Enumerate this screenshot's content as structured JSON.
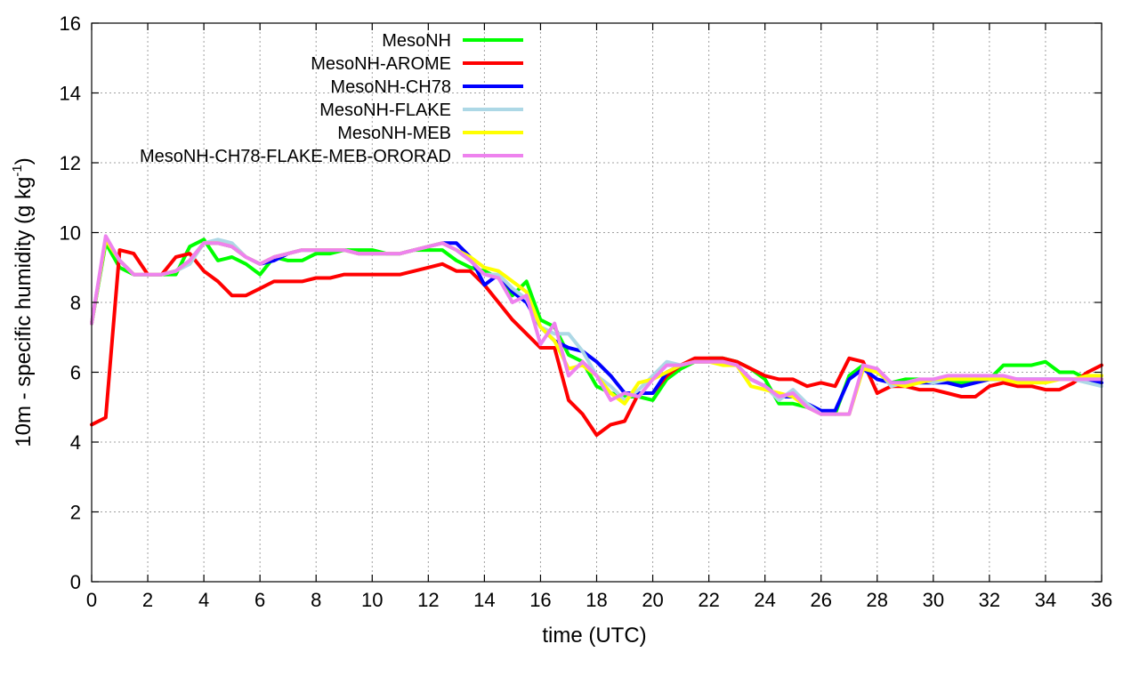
{
  "chart_data": {
    "type": "line",
    "title": "",
    "xlabel": "time (UTC)",
    "ylabel": "10m - specific humidity (g kg",
    "ylabel_sup": "-1",
    "ylabel_suffix": ")",
    "xlim": [
      0,
      36
    ],
    "ylim": [
      0,
      16
    ],
    "xticks": [
      0,
      2,
      4,
      6,
      8,
      10,
      12,
      14,
      16,
      18,
      20,
      22,
      24,
      26,
      28,
      30,
      32,
      34,
      36
    ],
    "yticks": [
      0,
      2,
      4,
      6,
      8,
      10,
      12,
      14,
      16
    ],
    "grid": true,
    "legend_position": "top-left",
    "series": [
      {
        "name": "MesoNH",
        "color": "#00ff00",
        "x": [
          0,
          0.5,
          1,
          1.5,
          2,
          2.5,
          3,
          3.5,
          4,
          4.5,
          5,
          5.5,
          6,
          6.5,
          7,
          7.5,
          8,
          8.5,
          9,
          9.5,
          10,
          10.5,
          11,
          11.5,
          12,
          12.5,
          13,
          13.5,
          14,
          14.5,
          15,
          15.5,
          16,
          16.5,
          17,
          17.5,
          18,
          18.5,
          19,
          19.5,
          20,
          20.5,
          21,
          21.5,
          22,
          22.5,
          23,
          23.5,
          24,
          24.5,
          25,
          25.5,
          26,
          26.5,
          27,
          27.5,
          28,
          28.5,
          29,
          29.5,
          30,
          30.5,
          31,
          31.5,
          32,
          32.5,
          33,
          33.5,
          34,
          34.5,
          35,
          35.5,
          36
        ],
        "y": [
          7.4,
          9.7,
          9.0,
          8.8,
          8.8,
          8.8,
          8.8,
          9.6,
          9.8,
          9.2,
          9.3,
          9.1,
          8.8,
          9.3,
          9.2,
          9.2,
          9.4,
          9.4,
          9.5,
          9.5,
          9.5,
          9.4,
          9.4,
          9.5,
          9.5,
          9.5,
          9.2,
          9.0,
          8.9,
          8.7,
          8.2,
          8.6,
          7.5,
          7.3,
          6.5,
          6.3,
          5.6,
          5.4,
          5.3,
          5.3,
          5.2,
          5.8,
          6.1,
          6.3,
          6.4,
          6.4,
          6.3,
          6.1,
          5.8,
          5.1,
          5.1,
          5.0,
          4.9,
          4.8,
          5.9,
          6.2,
          6.0,
          5.7,
          5.8,
          5.8,
          5.7,
          5.8,
          5.7,
          5.8,
          5.8,
          6.2,
          6.2,
          6.2,
          6.3,
          6.0,
          6.0,
          5.8,
          5.8
        ]
      },
      {
        "name": "MesoNH-AROME",
        "color": "#ff0000",
        "x": [
          0,
          0.5,
          1,
          1.5,
          2,
          2.5,
          3,
          3.5,
          4,
          4.5,
          5,
          5.5,
          6,
          6.5,
          7,
          7.5,
          8,
          8.5,
          9,
          9.5,
          10,
          10.5,
          11,
          11.5,
          12,
          12.5,
          13,
          13.5,
          14,
          14.5,
          15,
          15.5,
          16,
          16.5,
          17,
          17.5,
          18,
          18.5,
          19,
          19.5,
          20,
          20.5,
          21,
          21.5,
          22,
          22.5,
          23,
          23.5,
          24,
          24.5,
          25,
          25.5,
          26,
          26.5,
          27,
          27.5,
          28,
          28.5,
          29,
          29.5,
          30,
          30.5,
          31,
          31.5,
          32,
          32.5,
          33,
          33.5,
          34,
          34.5,
          35,
          35.5,
          36
        ],
        "y": [
          4.5,
          4.7,
          9.5,
          9.4,
          8.8,
          8.8,
          9.3,
          9.4,
          8.9,
          8.6,
          8.2,
          8.2,
          8.4,
          8.6,
          8.6,
          8.6,
          8.7,
          8.7,
          8.8,
          8.8,
          8.8,
          8.8,
          8.8,
          8.9,
          9.0,
          9.1,
          8.9,
          8.9,
          8.5,
          8.0,
          7.5,
          7.1,
          6.7,
          6.7,
          5.2,
          4.8,
          4.2,
          4.5,
          4.6,
          5.4,
          5.4,
          5.9,
          6.2,
          6.4,
          6.4,
          6.4,
          6.3,
          6.1,
          5.9,
          5.8,
          5.8,
          5.6,
          5.7,
          5.6,
          6.4,
          6.3,
          5.4,
          5.6,
          5.6,
          5.5,
          5.5,
          5.4,
          5.3,
          5.3,
          5.6,
          5.7,
          5.6,
          5.6,
          5.5,
          5.5,
          5.7,
          6.0,
          6.2
        ]
      },
      {
        "name": "MesoNH-CH78",
        "color": "#0000ff",
        "x": [
          0,
          0.5,
          1,
          1.5,
          2,
          2.5,
          3,
          3.5,
          4,
          4.5,
          5,
          5.5,
          6,
          6.5,
          7,
          7.5,
          8,
          8.5,
          9,
          9.5,
          10,
          10.5,
          11,
          11.5,
          12,
          12.5,
          13,
          13.5,
          14,
          14.5,
          15,
          15.5,
          16,
          16.5,
          17,
          17.5,
          18,
          18.5,
          19,
          19.5,
          20,
          20.5,
          21,
          21.5,
          22,
          22.5,
          23,
          23.5,
          24,
          24.5,
          25,
          25.5,
          26,
          26.5,
          27,
          27.5,
          28,
          28.5,
          29,
          29.5,
          30,
          30.5,
          31,
          31.5,
          32,
          32.5,
          33,
          33.5,
          34,
          34.5,
          35,
          35.5,
          36
        ],
        "y": [
          7.4,
          9.8,
          9.2,
          8.8,
          8.8,
          8.8,
          8.9,
          9.2,
          9.7,
          9.7,
          9.6,
          9.3,
          9.1,
          9.2,
          9.4,
          9.5,
          9.5,
          9.5,
          9.5,
          9.4,
          9.4,
          9.4,
          9.4,
          9.5,
          9.6,
          9.7,
          9.7,
          9.3,
          8.5,
          8.8,
          8.3,
          8.0,
          7.3,
          6.9,
          6.7,
          6.6,
          6.3,
          5.9,
          5.4,
          5.4,
          5.4,
          6.0,
          6.2,
          6.3,
          6.3,
          6.3,
          6.2,
          5.8,
          5.6,
          5.3,
          5.3,
          5.1,
          4.9,
          4.9,
          5.8,
          6.1,
          5.8,
          5.7,
          5.7,
          5.7,
          5.7,
          5.7,
          5.6,
          5.7,
          5.8,
          5.8,
          5.8,
          5.8,
          5.8,
          5.8,
          5.8,
          5.8,
          5.7
        ]
      },
      {
        "name": "MesoNH-FLAKE",
        "color": "#add8e6",
        "x": [
          0,
          0.5,
          1,
          1.5,
          2,
          2.5,
          3,
          3.5,
          4,
          4.5,
          5,
          5.5,
          6,
          6.5,
          7,
          7.5,
          8,
          8.5,
          9,
          9.5,
          10,
          10.5,
          11,
          11.5,
          12,
          12.5,
          13,
          13.5,
          14,
          14.5,
          15,
          15.5,
          16,
          16.5,
          17,
          17.5,
          18,
          18.5,
          19,
          19.5,
          20,
          20.5,
          21,
          21.5,
          22,
          22.5,
          23,
          23.5,
          24,
          24.5,
          25,
          25.5,
          26,
          26.5,
          27,
          27.5,
          28,
          28.5,
          29,
          29.5,
          30,
          30.5,
          31,
          31.5,
          32,
          32.5,
          33,
          33.5,
          34,
          34.5,
          35,
          35.5,
          36
        ],
        "y": [
          7.4,
          9.8,
          9.2,
          8.8,
          8.8,
          8.8,
          8.9,
          9.1,
          9.7,
          9.8,
          9.7,
          9.3,
          9.1,
          9.3,
          9.4,
          9.5,
          9.5,
          9.5,
          9.5,
          9.4,
          9.4,
          9.4,
          9.4,
          9.5,
          9.6,
          9.7,
          9.5,
          9.2,
          8.8,
          8.8,
          8.4,
          8.1,
          7.3,
          7.1,
          7.1,
          6.6,
          5.9,
          5.6,
          5.2,
          5.5,
          5.9,
          6.3,
          6.2,
          6.3,
          6.3,
          6.3,
          6.2,
          5.8,
          5.6,
          5.2,
          5.5,
          5.1,
          4.8,
          4.8,
          4.8,
          6.1,
          6.1,
          5.6,
          5.7,
          5.8,
          5.7,
          5.8,
          5.8,
          5.8,
          5.9,
          5.8,
          5.8,
          5.8,
          5.8,
          5.8,
          5.8,
          5.7,
          5.6
        ]
      },
      {
        "name": "MesoNH-MEB",
        "color": "#ffff00",
        "x": [
          0,
          0.5,
          1,
          1.5,
          2,
          2.5,
          3,
          3.5,
          4,
          4.5,
          5,
          5.5,
          6,
          6.5,
          7,
          7.5,
          8,
          8.5,
          9,
          9.5,
          10,
          10.5,
          11,
          11.5,
          12,
          12.5,
          13,
          13.5,
          14,
          14.5,
          15,
          15.5,
          16,
          16.5,
          17,
          17.5,
          18,
          18.5,
          19,
          19.5,
          20,
          20.5,
          21,
          21.5,
          22,
          22.5,
          23,
          23.5,
          24,
          24.5,
          25,
          25.5,
          26,
          26.5,
          27,
          27.5,
          28,
          28.5,
          29,
          29.5,
          30,
          30.5,
          31,
          31.5,
          32,
          32.5,
          33,
          33.5,
          34,
          34.5,
          35,
          35.5,
          36
        ],
        "y": [
          7.4,
          9.8,
          9.2,
          8.8,
          8.8,
          8.8,
          8.9,
          9.2,
          9.7,
          9.7,
          9.6,
          9.3,
          9.1,
          9.3,
          9.4,
          9.5,
          9.5,
          9.5,
          9.5,
          9.4,
          9.4,
          9.4,
          9.4,
          9.5,
          9.6,
          9.7,
          9.5,
          9.3,
          9.0,
          8.9,
          8.6,
          8.3,
          7.3,
          6.9,
          6.1,
          6.2,
          5.9,
          5.4,
          5.1,
          5.7,
          5.8,
          6.0,
          6.2,
          6.3,
          6.3,
          6.2,
          6.2,
          5.6,
          5.5,
          5.4,
          5.3,
          5.0,
          4.8,
          4.8,
          4.8,
          6.1,
          6.0,
          5.7,
          5.6,
          5.7,
          5.8,
          5.8,
          5.8,
          5.8,
          5.8,
          5.8,
          5.7,
          5.7,
          5.7,
          5.8,
          5.8,
          5.9,
          5.9
        ]
      },
      {
        "name": "MesoNH-CH78-FLAKE-MEB-ORORAD",
        "color": "#ee82ee",
        "x": [
          0,
          0.5,
          1,
          1.5,
          2,
          2.5,
          3,
          3.5,
          4,
          4.5,
          5,
          5.5,
          6,
          6.5,
          7,
          7.5,
          8,
          8.5,
          9,
          9.5,
          10,
          10.5,
          11,
          11.5,
          12,
          12.5,
          13,
          13.5,
          14,
          14.5,
          15,
          15.5,
          16,
          16.5,
          17,
          17.5,
          18,
          18.5,
          19,
          19.5,
          20,
          20.5,
          21,
          21.5,
          22,
          22.5,
          23,
          23.5,
          24,
          24.5,
          25,
          25.5,
          26,
          26.5,
          27,
          27.5,
          28,
          28.5,
          29,
          29.5,
          30,
          30.5,
          31,
          31.5,
          32,
          32.5,
          33,
          33.5,
          34,
          34.5,
          35,
          35.5,
          36
        ],
        "y": [
          7.4,
          9.9,
          9.2,
          8.8,
          8.8,
          8.8,
          8.9,
          9.2,
          9.7,
          9.7,
          9.6,
          9.3,
          9.1,
          9.3,
          9.4,
          9.5,
          9.5,
          9.5,
          9.5,
          9.4,
          9.4,
          9.4,
          9.4,
          9.5,
          9.6,
          9.7,
          9.5,
          9.2,
          8.8,
          8.7,
          8.0,
          8.2,
          6.8,
          7.4,
          5.9,
          6.3,
          5.9,
          5.2,
          5.4,
          5.3,
          5.8,
          6.2,
          6.2,
          6.3,
          6.3,
          6.3,
          6.2,
          5.8,
          5.6,
          5.3,
          5.4,
          5.0,
          4.8,
          4.8,
          4.8,
          6.2,
          6.1,
          5.7,
          5.7,
          5.8,
          5.8,
          5.9,
          5.9,
          5.9,
          5.9,
          5.9,
          5.8,
          5.8,
          5.8,
          5.8,
          5.8,
          5.8,
          5.8
        ]
      }
    ]
  }
}
